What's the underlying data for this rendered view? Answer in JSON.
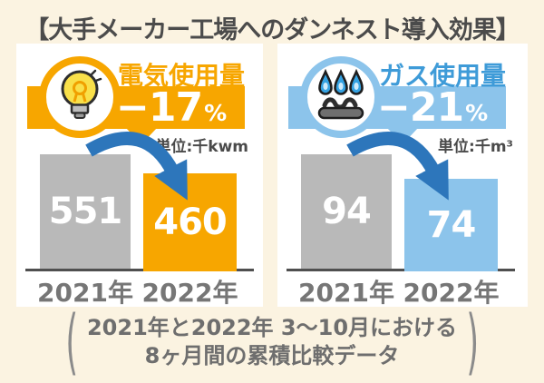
{
  "title": "【大手メーカー工場へのダンネスト導入効果】",
  "panels": [
    {
      "label": "電気使用量",
      "change": "−17",
      "percent_sign": "%",
      "unit": "単位:千kwm",
      "icon": "lightbulb-icon",
      "accent_color": "#F7A600",
      "label_color": "#F7A600"
    },
    {
      "label": "ガス使用量",
      "change": "−21",
      "percent_sign": "%",
      "unit": "単位:千m³",
      "icon": "gas-burner-icon",
      "accent_color": "#8CC4EB",
      "label_color": "#3E9BD8"
    }
  ],
  "chart_data": [
    {
      "type": "bar",
      "title": "電気使用量",
      "categories": [
        "2021年",
        "2022年"
      ],
      "values": [
        551,
        460
      ],
      "unit": "千kwm",
      "change_percent": -17,
      "bar_colors": [
        "#B9B9B9",
        "#F7A600"
      ],
      "value_labels_inside_bars": true
    },
    {
      "type": "bar",
      "title": "ガス使用量",
      "categories": [
        "2021年",
        "2022年"
      ],
      "values": [
        94,
        74
      ],
      "unit": "千m³",
      "change_percent": -21,
      "bar_colors": [
        "#B9B9B9",
        "#8CC4EB"
      ],
      "value_labels_inside_bars": true
    }
  ],
  "footer": {
    "open_paren": "(",
    "line1": "2021年と2022年 3〜10月における",
    "line2": "8ヶ月間の累積比較データ",
    "close_paren": ")"
  },
  "colors": {
    "background": "#FBF3E1",
    "panel": "#FFFFFF",
    "arrow_blue": "#2D76BB",
    "gray_bar": "#B9B9B9",
    "title_text": "#4B4B4B",
    "unit_text": "#4A4A4A",
    "year_label": "#767676",
    "footer_text": "#6E6E6E"
  }
}
